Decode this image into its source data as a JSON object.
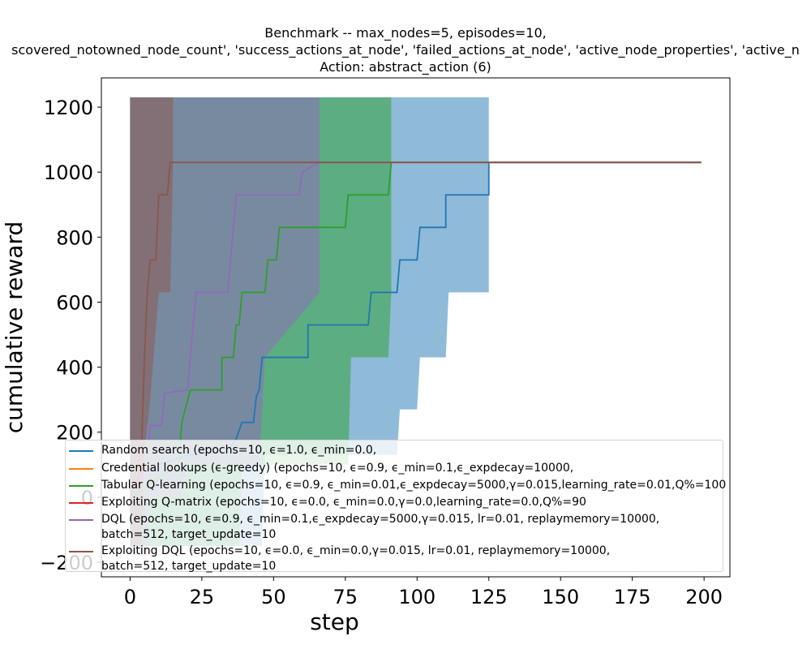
{
  "chart_data": {
    "type": "line",
    "title_lines": [
      "Benchmark -- max_nodes=5, episodes=10,",
      "scovered_notowned_node_count', 'success_actions_at_node', 'failed_actions_at_node', 'active_node_properties', 'active_n",
      "Action: abstract_action (6)"
    ],
    "xlabel": "step",
    "ylabel": "cumulative reward",
    "xlim": [
      -10,
      209
    ],
    "ylim": [
      -245,
      1290
    ],
    "x_ticks": [
      "0",
      "25",
      "50",
      "75",
      "100",
      "125",
      "150",
      "175",
      "200"
    ],
    "x_tick_values": [
      0,
      25,
      50,
      75,
      100,
      125,
      150,
      175,
      200
    ],
    "y_ticks": [
      "−200",
      "0",
      "200",
      "400",
      "600",
      "800",
      "1000",
      "1200"
    ],
    "y_tick_values": [
      -200,
      0,
      200,
      400,
      600,
      800,
      1000,
      1200
    ],
    "grid": false,
    "legend_position": "lower-center",
    "series": [
      {
        "name": "Random search (epochs=10, ϵ=1.0, ϵ_min=0.0,",
        "color": "#1f77b4",
        "mean": [
          [
            0,
            0
          ],
          [
            4,
            100
          ],
          [
            10,
            100
          ],
          [
            20,
            130
          ],
          [
            34,
            140
          ],
          [
            37,
            180
          ],
          [
            39,
            230
          ],
          [
            43,
            230
          ],
          [
            44,
            310
          ],
          [
            45,
            330
          ],
          [
            46,
            430
          ],
          [
            62,
            430
          ],
          [
            62,
            530
          ],
          [
            83,
            530
          ],
          [
            84,
            630
          ],
          [
            93,
            630
          ],
          [
            94,
            730
          ],
          [
            100,
            730
          ],
          [
            101,
            830
          ],
          [
            110,
            830
          ],
          [
            110,
            930
          ],
          [
            125,
            930
          ],
          [
            125,
            1030
          ],
          [
            199,
            1030
          ]
        ],
        "upper": [
          [
            0,
            1230
          ],
          [
            125,
            1230
          ]
        ],
        "lower": [
          [
            0,
            -150
          ],
          [
            46,
            -150
          ],
          [
            47,
            130
          ],
          [
            93,
            130
          ],
          [
            94,
            270
          ],
          [
            100,
            270
          ],
          [
            101,
            430
          ],
          [
            110,
            430
          ],
          [
            111,
            630
          ],
          [
            125,
            630
          ]
        ]
      },
      {
        "name": "Credential lookups (ϵ-greedy) (epochs=10, ϵ=0.9, ϵ_min=0.1,ϵ_expdecay=10000,",
        "color": "#ff7f0e",
        "mean": [
          [
            0,
            0
          ],
          [
            3,
            100
          ],
          [
            7,
            100
          ],
          [
            8,
            100
          ]
        ],
        "upper": [],
        "lower": []
      },
      {
        "name": "Tabular Q-learning (epochs=10, ϵ=0.9, ϵ_min=0.01,ϵ_expdecay=5000,γ=0.015,learning_rate=0.01,Q%=100",
        "color": "#2ca02c",
        "mean": [
          [
            0,
            0
          ],
          [
            17,
            100
          ],
          [
            18,
            230
          ],
          [
            21,
            330
          ],
          [
            32,
            330
          ],
          [
            32,
            430
          ],
          [
            36,
            430
          ],
          [
            37,
            530
          ],
          [
            38,
            530
          ],
          [
            39,
            630
          ],
          [
            47,
            630
          ],
          [
            48,
            730
          ],
          [
            51,
            730
          ],
          [
            52,
            830
          ],
          [
            75,
            830
          ],
          [
            76,
            930
          ],
          [
            90,
            930
          ],
          [
            91,
            1030
          ],
          [
            199,
            1030
          ]
        ],
        "upper": [
          [
            0,
            1230
          ],
          [
            91,
            1230
          ]
        ],
        "lower": [
          [
            0,
            -150
          ],
          [
            38,
            -150
          ],
          [
            39,
            100
          ],
          [
            76,
            100
          ],
          [
            77,
            430
          ],
          [
            90,
            430
          ],
          [
            91,
            630
          ]
        ]
      },
      {
        "name": "Exploiting Q-matrix (epochs=10, ϵ=0.0, ϵ_min=0.0,γ=0.0,learning_rate=0.0,Q%=90",
        "color": "#d62728",
        "mean": [
          [
            0,
            0
          ],
          [
            5,
            100
          ]
        ],
        "upper": [],
        "lower": []
      },
      {
        "name": "DQL (epochs=10, ϵ=0.9, ϵ_min=0.1,ϵ_expdecay=5000,γ=0.015, lr=0.01, replaymemory=10000,\nbatch=512, target_update=10",
        "color": "#9467bd",
        "mean": [
          [
            0,
            0
          ],
          [
            6,
            100
          ],
          [
            7,
            220
          ],
          [
            11,
            220
          ],
          [
            12,
            320
          ],
          [
            20,
            330
          ],
          [
            21,
            430
          ],
          [
            22,
            530
          ],
          [
            23,
            630
          ],
          [
            34,
            630
          ],
          [
            35,
            730
          ],
          [
            36,
            830
          ],
          [
            37,
            930
          ],
          [
            59,
            930
          ],
          [
            60,
            1000
          ],
          [
            66,
            1030
          ],
          [
            199,
            1030
          ]
        ],
        "upper": [
          [
            0,
            1230
          ],
          [
            66,
            1230
          ]
        ],
        "lower": [
          [
            0,
            -180
          ],
          [
            6,
            -180
          ],
          [
            7,
            0
          ],
          [
            18,
            0
          ],
          [
            20,
            100
          ],
          [
            45,
            100
          ],
          [
            47,
            430
          ],
          [
            66,
            630
          ]
        ]
      },
      {
        "name": "Exploiting DQL (epochs=10, ϵ=0.0, ϵ_min=0.0,γ=0.015, lr=0.01, replaymemory=10000,\nbatch=512, target_update=10",
        "color": "#8c564b",
        "mean": [
          [
            0,
            0
          ],
          [
            4,
            150
          ],
          [
            5,
            430
          ],
          [
            6,
            630
          ],
          [
            7,
            730
          ],
          [
            9,
            730
          ],
          [
            10,
            930
          ],
          [
            13,
            930
          ],
          [
            14,
            1030
          ],
          [
            199,
            1030
          ]
        ],
        "upper": [
          [
            0,
            1230
          ],
          [
            15,
            1230
          ]
        ],
        "lower": [
          [
            0,
            -150
          ],
          [
            4,
            -150
          ],
          [
            5,
            130
          ],
          [
            7,
            300
          ],
          [
            10,
            630
          ],
          [
            14,
            630
          ],
          [
            15,
            1030
          ]
        ]
      }
    ]
  }
}
